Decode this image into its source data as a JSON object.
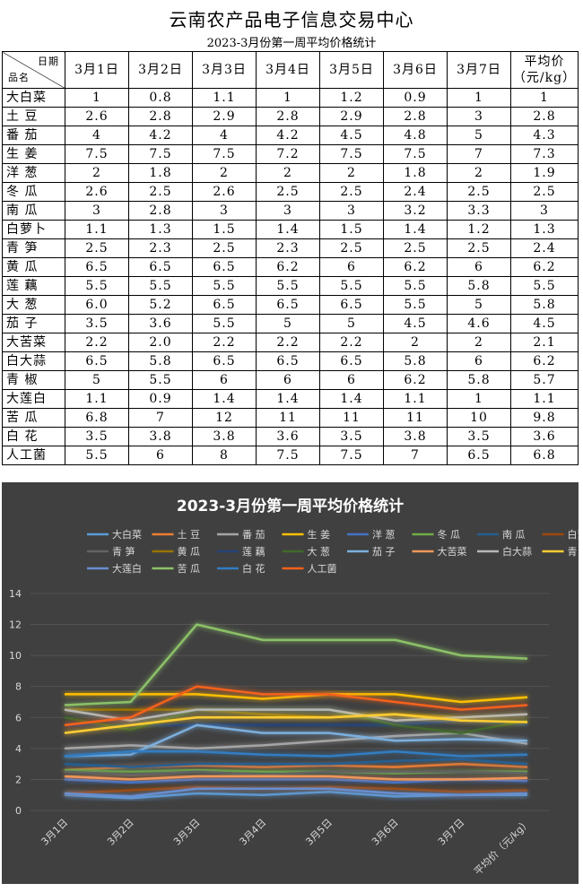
{
  "header": {
    "title": "云南农产品电子信息交易中心",
    "subtitle": "2023-3月份第一周平均价格统计"
  },
  "table": {
    "corner_top": "日期",
    "corner_bottom": "品名",
    "columns": [
      "3月1日",
      "3月2日",
      "3月3日",
      "3月4日",
      "3月5日",
      "3月6日",
      "3月7日"
    ],
    "avg_header_line1": "平均价",
    "avg_header_line2": "（元/kg）",
    "rows": [
      {
        "name": "大白菜",
        "values": [
          "1",
          "0.8",
          "1.1",
          "1",
          "1.2",
          "0.9",
          "1",
          "1"
        ]
      },
      {
        "name": "土 豆",
        "values": [
          "2.6",
          "2.8",
          "2.9",
          "2.8",
          "2.9",
          "2.8",
          "3",
          "2.8"
        ]
      },
      {
        "name": "番 茄",
        "values": [
          "4",
          "4.2",
          "4",
          "4.2",
          "4.5",
          "4.8",
          "5",
          "4.3"
        ]
      },
      {
        "name": "生 姜",
        "values": [
          "7.5",
          "7.5",
          "7.5",
          "7.2",
          "7.5",
          "7.5",
          "7",
          "7.3"
        ]
      },
      {
        "name": "洋 葱",
        "values": [
          "2",
          "1.8",
          "2",
          "2",
          "2",
          "1.8",
          "2",
          "1.9"
        ]
      },
      {
        "name": "冬 瓜",
        "values": [
          "2.6",
          "2.5",
          "2.6",
          "2.5",
          "2.5",
          "2.4",
          "2.5",
          "2.5"
        ]
      },
      {
        "name": "南 瓜",
        "values": [
          "3",
          "2.8",
          "3",
          "3",
          "3",
          "3.2",
          "3.3",
          "3"
        ]
      },
      {
        "name": "白萝卜",
        "values": [
          "1.1",
          "1.3",
          "1.5",
          "1.4",
          "1.5",
          "1.4",
          "1.2",
          "1.3"
        ]
      },
      {
        "name": "青 笋",
        "values": [
          "2.5",
          "2.3",
          "2.5",
          "2.3",
          "2.5",
          "2.5",
          "2.5",
          "2.4"
        ]
      },
      {
        "name": "黄 瓜",
        "values": [
          "6.5",
          "6.5",
          "6.5",
          "6.2",
          "6",
          "6.2",
          "6",
          "6.2"
        ]
      },
      {
        "name": "莲 藕",
        "values": [
          "5.5",
          "5.5",
          "5.5",
          "5.5",
          "5.5",
          "5.5",
          "5.8",
          "5.5"
        ]
      },
      {
        "name": "大 葱",
        "values": [
          "6.0",
          "5.2",
          "6.5",
          "6.5",
          "6.5",
          "5.5",
          "5",
          "5.8"
        ]
      },
      {
        "name": "茄 子",
        "values": [
          "3.5",
          "3.6",
          "5.5",
          "5",
          "5",
          "4.5",
          "4.6",
          "4.5"
        ]
      },
      {
        "name": "大苦菜",
        "values": [
          "2.2",
          "2.0",
          "2.2",
          "2.2",
          "2.2",
          "2",
          "2",
          "2.1"
        ]
      },
      {
        "name": "白大蒜",
        "values": [
          "6.5",
          "5.8",
          "6.5",
          "6.5",
          "6.5",
          "5.8",
          "6",
          "6.2"
        ]
      },
      {
        "name": "青 椒",
        "values": [
          "5",
          "5.5",
          "6",
          "6",
          "6",
          "6.2",
          "5.8",
          "5.7"
        ]
      },
      {
        "name": "大莲白",
        "values": [
          "1.1",
          "0.9",
          "1.4",
          "1.4",
          "1.4",
          "1.1",
          "1",
          "1.1"
        ]
      },
      {
        "name": "苦 瓜",
        "values": [
          "6.8",
          "7",
          "12",
          "11",
          "11",
          "11",
          "10",
          "9.8"
        ]
      },
      {
        "name": "白 花",
        "values": [
          "3.5",
          "3.8",
          "3.8",
          "3.6",
          "3.5",
          "3.8",
          "3.5",
          "3.6"
        ]
      },
      {
        "name": "人工菌",
        "values": [
          "5.5",
          "6",
          "8",
          "7.5",
          "7.5",
          "7",
          "6.5",
          "6.8"
        ]
      }
    ]
  },
  "chart_data": {
    "type": "line",
    "title": "2023-3月份第一周平均价格统计",
    "categories": [
      "3月1日",
      "3月2日",
      "3月3日",
      "3月4日",
      "3月5日",
      "3月6日",
      "3月7日",
      "平均价（元/kg）"
    ],
    "ylim": [
      0,
      14
    ],
    "yticks": [
      0,
      2,
      4,
      6,
      8,
      10,
      12,
      14
    ],
    "grid": true,
    "legend_position": "top",
    "series": [
      {
        "name": "大白菜",
        "color": "#5B9BD5",
        "values": [
          1,
          0.8,
          1.1,
          1,
          1.2,
          0.9,
          1,
          1
        ]
      },
      {
        "name": "土 豆",
        "color": "#ED7D31",
        "values": [
          2.6,
          2.8,
          2.9,
          2.8,
          2.9,
          2.8,
          3,
          2.8
        ]
      },
      {
        "name": "番 茄",
        "color": "#A5A5A5",
        "values": [
          4,
          4.2,
          4,
          4.2,
          4.5,
          4.8,
          5,
          4.3
        ]
      },
      {
        "name": "生 姜",
        "color": "#FFC000",
        "values": [
          7.5,
          7.5,
          7.5,
          7.2,
          7.5,
          7.5,
          7,
          7.3
        ]
      },
      {
        "name": "洋 葱",
        "color": "#4472C4",
        "values": [
          2,
          1.8,
          2,
          2,
          2,
          1.8,
          2,
          1.9
        ]
      },
      {
        "name": "冬 瓜",
        "color": "#70AD47",
        "values": [
          2.6,
          2.5,
          2.6,
          2.5,
          2.5,
          2.4,
          2.5,
          2.5
        ]
      },
      {
        "name": "南 瓜",
        "color": "#255E91",
        "values": [
          3,
          2.8,
          3,
          3,
          3,
          3.2,
          3.3,
          3
        ]
      },
      {
        "name": "白萝卜",
        "color": "#9E480E",
        "values": [
          1.1,
          1.3,
          1.5,
          1.4,
          1.5,
          1.4,
          1.2,
          1.3
        ]
      },
      {
        "name": "青 笋",
        "color": "#636363",
        "values": [
          2.5,
          2.3,
          2.5,
          2.3,
          2.5,
          2.5,
          2.5,
          2.4
        ]
      },
      {
        "name": "黄 瓜",
        "color": "#997300",
        "values": [
          6.5,
          6.5,
          6.5,
          6.2,
          6,
          6.2,
          6,
          6.2
        ]
      },
      {
        "name": "莲 藕",
        "color": "#264478",
        "values": [
          5.5,
          5.5,
          5.5,
          5.5,
          5.5,
          5.5,
          5.8,
          5.5
        ]
      },
      {
        "name": "大 葱",
        "color": "#43682B",
        "values": [
          6.0,
          5.2,
          6.5,
          6.5,
          6.5,
          5.5,
          5,
          5.8
        ]
      },
      {
        "name": "茄 子",
        "color": "#7CAFDD",
        "values": [
          3.5,
          3.6,
          5.5,
          5,
          5,
          4.5,
          4.6,
          4.5
        ]
      },
      {
        "name": "大苦菜",
        "color": "#F1975A",
        "values": [
          2.2,
          2.0,
          2.2,
          2.2,
          2.2,
          2,
          2,
          2.1
        ]
      },
      {
        "name": "白大蒜",
        "color": "#B7B7B7",
        "values": [
          6.5,
          5.8,
          6.5,
          6.5,
          6.5,
          5.8,
          6,
          6.2
        ]
      },
      {
        "name": "青 椒",
        "color": "#FFCD33",
        "values": [
          5,
          5.5,
          6,
          6,
          6,
          6.2,
          5.8,
          5.7
        ]
      },
      {
        "name": "大莲白",
        "color": "#698ED0",
        "values": [
          1.1,
          0.9,
          1.4,
          1.4,
          1.4,
          1.1,
          1,
          1.1
        ]
      },
      {
        "name": "苦 瓜",
        "color": "#8CC168",
        "values": [
          6.8,
          7,
          12,
          11,
          11,
          11,
          10,
          9.8
        ]
      },
      {
        "name": "白 花",
        "color": "#327DC2",
        "values": [
          3.5,
          3.8,
          3.8,
          3.6,
          3.5,
          3.8,
          3.5,
          3.6
        ]
      },
      {
        "name": "人工菌",
        "color": "#F4621A",
        "values": [
          5.5,
          6,
          8,
          7.5,
          7.5,
          7,
          6.5,
          6.8
        ]
      }
    ]
  }
}
